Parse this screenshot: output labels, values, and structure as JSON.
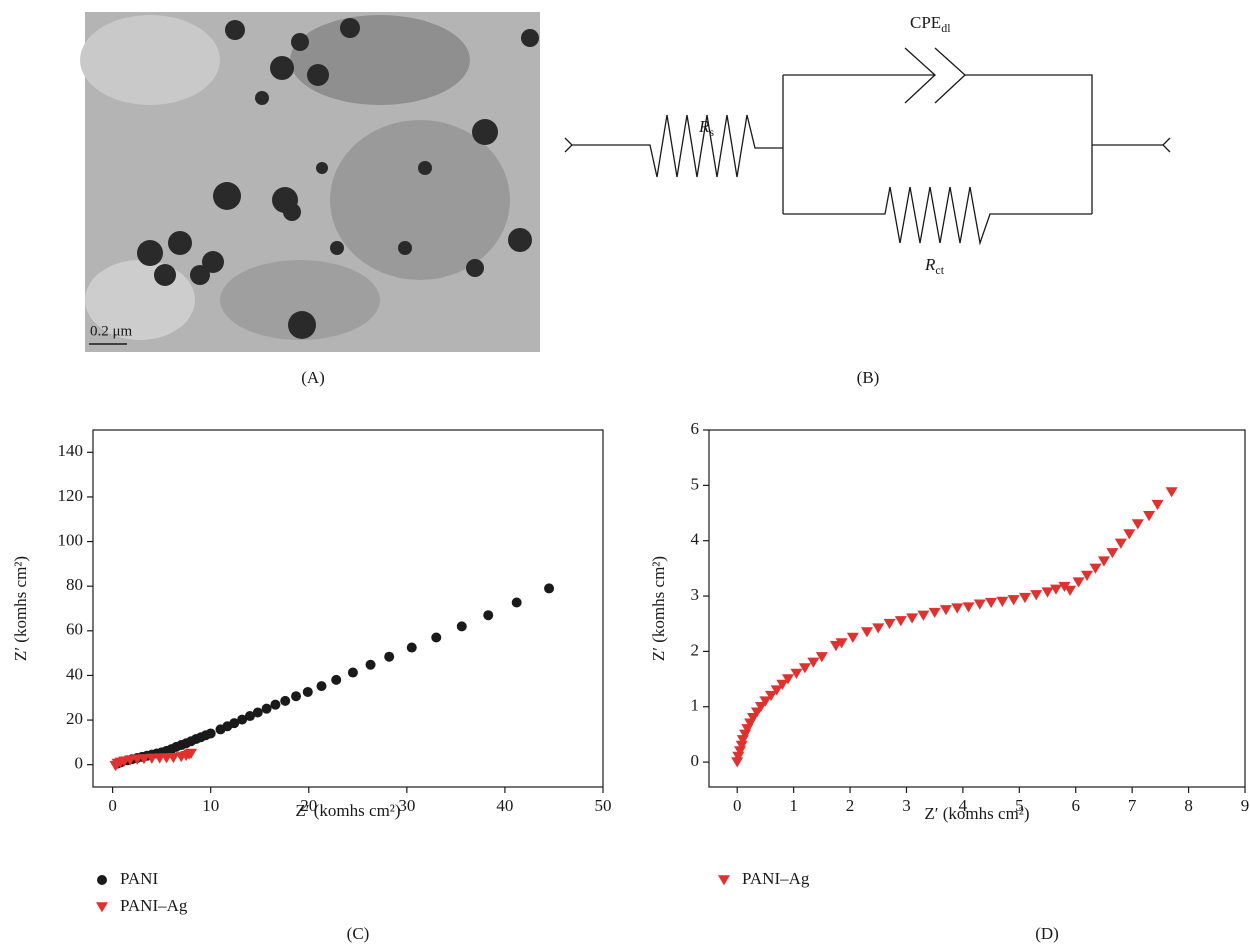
{
  "panels": {
    "a": "(A)",
    "b": "(B)"
  },
  "image": {
    "scale_bar": "0.2 μm"
  },
  "circuit": {
    "cpe": {
      "main": "CPE",
      "sub": "dl"
    },
    "rs": {
      "main": "R",
      "sub": "s"
    },
    "rct": {
      "main": "R",
      "sub": "ct"
    }
  },
  "chart_data": [
    {
      "type": "scatter",
      "title": "(C)",
      "x_label": "Z′ (komhs cm²)",
      "y_label": "Z′ (komhs cm²)",
      "xlim": [
        -2,
        50
      ],
      "ylim": [
        -10,
        150
      ],
      "xticks": [
        0,
        10,
        20,
        30,
        40,
        50
      ],
      "yticks": [
        0,
        20,
        40,
        60,
        80,
        100,
        120,
        140
      ],
      "series": [
        {
          "name": "PANI",
          "color": "#1a1a1a",
          "marker": "circle",
          "x": [
            0.5,
            0.8,
            1,
            1.5,
            2,
            2.5,
            3,
            3.5,
            4,
            4.5,
            5,
            5.5,
            6,
            6.5,
            7,
            7.5,
            8,
            8.5,
            9,
            9.5,
            10,
            11,
            11.7,
            12.4,
            13.2,
            14,
            14.8,
            15.7,
            16.6,
            17.6,
            18.7,
            19.9,
            21.3,
            22.8,
            24.5,
            26.3,
            28.2,
            30.5,
            33,
            35.6,
            38.3,
            41.2,
            44.5
          ],
          "values": [
            0.5,
            1,
            1.5,
            2,
            2.5,
            3,
            3.5,
            4,
            4.5,
            5,
            5.5,
            6.2,
            7,
            8,
            8.8,
            9.6,
            10.5,
            11.5,
            12.3,
            13.2,
            14,
            15.8,
            17.2,
            18.6,
            20.2,
            21.8,
            23.4,
            25.1,
            26.9,
            28.6,
            30.7,
            32.6,
            35.2,
            38,
            41.3,
            44.8,
            48.4,
            52.5,
            57,
            62,
            67,
            72.7,
            79
          ]
        },
        {
          "name": "PANI–Ag",
          "color": "#e0312f",
          "marker": "triangle-down",
          "x": [
            0.3,
            0.5,
            0.8,
            1.2,
            1.8,
            2.5,
            3.2,
            4,
            4.8,
            5.5,
            6.2,
            7,
            7.5,
            7.8,
            8
          ],
          "values": [
            -0.5,
            0.5,
            1,
            1.5,
            2,
            2.4,
            2.6,
            2.8,
            2.9,
            3,
            3.1,
            3.5,
            4,
            4.6,
            5
          ]
        }
      ]
    },
    {
      "type": "scatter",
      "title": "(D)",
      "x_label": "Z′ (komhs cm²)",
      "y_label": "Z′ (komhs cm²)",
      "xlim": [
        -0.5,
        9
      ],
      "ylim": [
        -0.45,
        6
      ],
      "xticks": [
        0,
        1,
        2,
        3,
        4,
        5,
        6,
        7,
        8,
        9
      ],
      "yticks": [
        0,
        1,
        2,
        3,
        4,
        5,
        6
      ],
      "series": [
        {
          "name": "PANI–Ag",
          "color": "#e0312f",
          "marker": "triangle-down",
          "x": [
            0,
            0.02,
            0.05,
            0.08,
            0.1,
            0.14,
            0.18,
            0.23,
            0.28,
            0.35,
            0.42,
            0.5,
            0.6,
            0.7,
            0.8,
            0.9,
            1.05,
            1.2,
            1.35,
            1.5,
            1.75,
            1.85,
            2.05,
            2.3,
            2.5,
            2.7,
            2.9,
            3.1,
            3.3,
            3.5,
            3.7,
            3.9,
            4.1,
            4.3,
            4.5,
            4.7,
            4.9,
            5.1,
            5.3,
            5.5,
            5.65,
            5.8,
            5.9,
            6.05,
            6.2,
            6.35,
            6.5,
            6.65,
            6.8,
            6.95,
            7.1,
            7.3,
            7.45,
            7.7
          ],
          "values": [
            0,
            0.1,
            0.2,
            0.3,
            0.4,
            0.5,
            0.6,
            0.7,
            0.8,
            0.9,
            1,
            1.1,
            1.2,
            1.3,
            1.4,
            1.5,
            1.6,
            1.7,
            1.8,
            1.9,
            2.1,
            2.15,
            2.25,
            2.35,
            2.42,
            2.5,
            2.55,
            2.6,
            2.65,
            2.7,
            2.75,
            2.78,
            2.8,
            2.85,
            2.88,
            2.9,
            2.93,
            2.97,
            3.02,
            3.07,
            3.12,
            3.17,
            3.1,
            3.25,
            3.37,
            3.5,
            3.63,
            3.78,
            3.95,
            4.12,
            4.3,
            4.45,
            4.65,
            4.88
          ]
        }
      ]
    }
  ]
}
